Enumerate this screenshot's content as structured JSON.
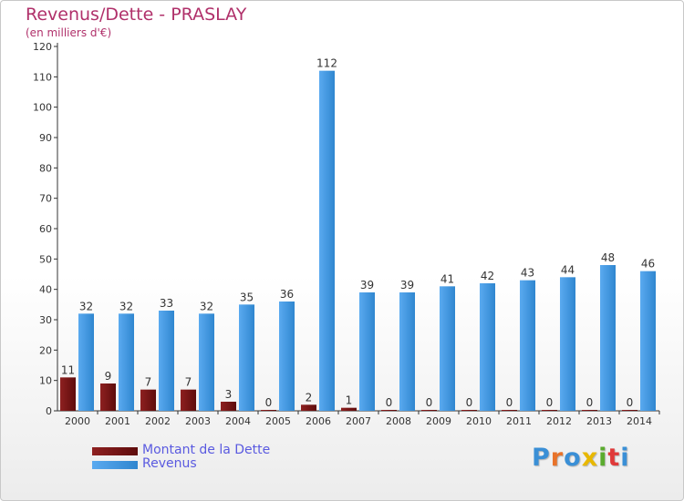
{
  "header": {
    "title": "Revenus/Dette - PRASLAY",
    "subtitle": "(en milliers d'€)"
  },
  "colors": {
    "dette": "#7a1414",
    "revenus": "#3a93dc",
    "title": "#b0306a",
    "legend_text": "#5a5ae0"
  },
  "legend": {
    "dette_label": "Montant de la Dette",
    "revenus_label": "Revenus"
  },
  "logo": {
    "text": "Proxiti"
  },
  "chart_data": {
    "type": "bar",
    "title": "Revenus/Dette - PRASLAY",
    "subtitle": "(en milliers d'€)",
    "xlabel": "",
    "ylabel": "",
    "categories": [
      "2000",
      "2001",
      "2002",
      "2003",
      "2004",
      "2005",
      "2006",
      "2007",
      "2008",
      "2009",
      "2010",
      "2011",
      "2012",
      "2013",
      "2014"
    ],
    "series": [
      {
        "name": "Montant de la Dette",
        "values": [
          11,
          9,
          7,
          7,
          3,
          0,
          2,
          1,
          0,
          0,
          0,
          0,
          0,
          0,
          0
        ]
      },
      {
        "name": "Revenus",
        "values": [
          32,
          32,
          33,
          32,
          35,
          36,
          112,
          39,
          39,
          41,
          42,
          43,
          44,
          48,
          46
        ]
      }
    ],
    "ylim": [
      0,
      120
    ],
    "yticks": [
      0,
      10,
      20,
      30,
      40,
      50,
      60,
      70,
      80,
      90,
      100,
      110,
      120
    ],
    "grid": false,
    "legend_position": "bottom-left"
  }
}
